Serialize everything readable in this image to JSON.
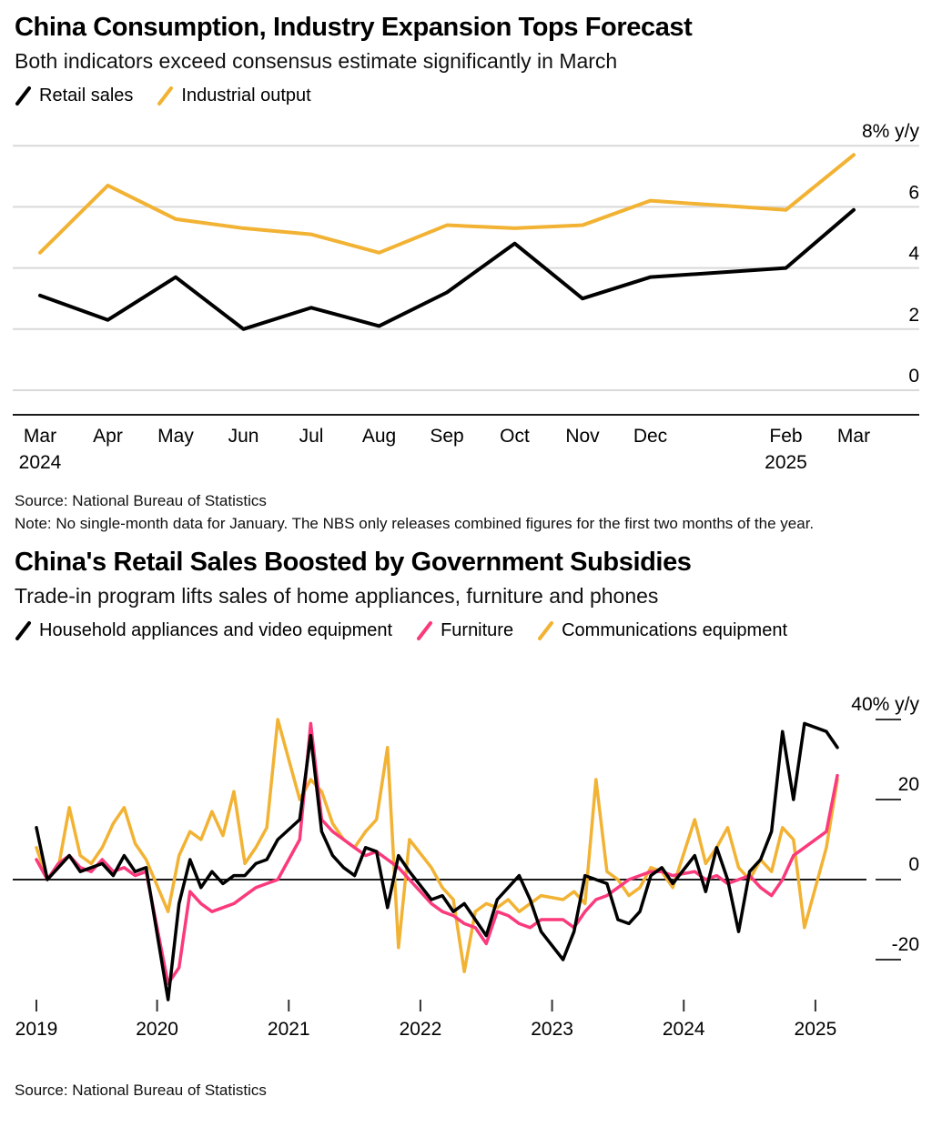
{
  "chart_data": [
    {
      "type": "line",
      "title": "China Consumption, Industry Expansion Tops Forecast",
      "subtitle": "Both indicators exceed consensus estimate significantly in March",
      "source": "Source: National Bureau of Statistics",
      "note": "Note: No single-month data for January. The NBS only releases combined figures for the first two months of the year.",
      "unit": "% y/y",
      "ylim": [
        0,
        8.6
      ],
      "yticks": [
        0,
        2,
        4,
        6,
        8
      ],
      "ytick_labels": [
        "0",
        "2",
        "4",
        "6",
        "8% y/y"
      ],
      "grid": "horizontal",
      "legend_position": "top",
      "categories": [
        "Mar 2024",
        "Apr 2024",
        "May 2024",
        "Jun 2024",
        "Jul 2024",
        "Aug 2024",
        "Sep 2024",
        "Oct 2024",
        "Nov 2024",
        "Dec 2024",
        "Feb 2025",
        "Mar 2025"
      ],
      "month_offsets": [
        0,
        1,
        2,
        3,
        4,
        5,
        6,
        7,
        8,
        9,
        11,
        12
      ],
      "xticks": [
        {
          "label": "Mar",
          "year": "2024",
          "offset": 0
        },
        {
          "label": "Apr",
          "offset": 1
        },
        {
          "label": "May",
          "offset": 2
        },
        {
          "label": "Jun",
          "offset": 3
        },
        {
          "label": "Jul",
          "offset": 4
        },
        {
          "label": "Aug",
          "offset": 5
        },
        {
          "label": "Sep",
          "offset": 6
        },
        {
          "label": "Oct",
          "offset": 7
        },
        {
          "label": "Nov",
          "offset": 8
        },
        {
          "label": "Dec",
          "offset": 9
        },
        {
          "label": "Feb",
          "year": "2025",
          "offset": 11
        },
        {
          "label": "Mar",
          "offset": 12
        }
      ],
      "series": [
        {
          "key": "retail-sales",
          "name": "Retail sales",
          "color": "#000000",
          "values": [
            3.1,
            2.3,
            3.7,
            2.0,
            2.7,
            2.1,
            3.2,
            4.8,
            3.0,
            3.7,
            4.0,
            5.9
          ]
        },
        {
          "key": "industrial-output",
          "name": "Industrial output",
          "color": "#f2b233",
          "values": [
            4.5,
            6.7,
            5.6,
            5.3,
            5.1,
            4.5,
            5.4,
            5.3,
            5.4,
            6.2,
            5.9,
            7.7
          ]
        }
      ]
    },
    {
      "type": "line",
      "title": "China's Retail Sales Boosted by Government Subsidies",
      "subtitle": "Trade-in program lifts sales of home appliances, furniture and phones",
      "source": "Source: National Bureau of Statistics",
      "unit": "% y/y",
      "ylim": [
        -32,
        42
      ],
      "yticks": [
        -20,
        0,
        20,
        40
      ],
      "ytick_labels": [
        "-20",
        "0",
        "20",
        "40% y/y"
      ],
      "grid": "none",
      "zero_line": true,
      "legend_position": "top",
      "x_year_labels": [
        "2019",
        "2020",
        "2021",
        "2022",
        "2023",
        "2024",
        "2025"
      ],
      "x_year_ticks": [
        1,
        12,
        24,
        36,
        48,
        60,
        72
      ],
      "x_months": [
        "2019-02",
        "2019-03",
        "2019-04",
        "2019-05",
        "2019-06",
        "2019-07",
        "2019-08",
        "2019-09",
        "2019-10",
        "2019-11",
        "2019-12",
        "2020-02",
        "2020-03",
        "2020-04",
        "2020-05",
        "2020-06",
        "2020-07",
        "2020-08",
        "2020-09",
        "2020-10",
        "2020-11",
        "2020-12",
        "2021-02",
        "2021-03",
        "2021-04",
        "2021-05",
        "2021-06",
        "2021-07",
        "2021-08",
        "2021-09",
        "2021-10",
        "2021-11",
        "2021-12",
        "2022-02",
        "2022-03",
        "2022-04",
        "2022-05",
        "2022-06",
        "2022-07",
        "2022-08",
        "2022-09",
        "2022-10",
        "2022-11",
        "2022-12",
        "2023-02",
        "2023-03",
        "2023-04",
        "2023-05",
        "2023-06",
        "2023-07",
        "2023-08",
        "2023-09",
        "2023-10",
        "2023-11",
        "2023-12",
        "2024-02",
        "2024-03",
        "2024-04",
        "2024-05",
        "2024-06",
        "2024-07",
        "2024-08",
        "2024-09",
        "2024-10",
        "2024-11",
        "2024-12",
        "2025-02",
        "2025-03"
      ],
      "series": [
        {
          "key": "household-appliances",
          "name": "Household appliances and video equipment",
          "color": "#000000",
          "values": [
            13,
            0,
            3,
            6,
            2,
            3,
            4,
            1,
            6,
            2,
            3,
            -30,
            -6,
            5,
            -2,
            2,
            -1,
            1,
            1,
            4,
            5,
            10,
            15,
            36,
            12,
            6,
            3,
            1,
            8,
            7,
            -7,
            6,
            2,
            -5,
            -4,
            -8,
            -6,
            -10,
            -14,
            -5,
            -2,
            1,
            -5,
            -13,
            -20,
            -13,
            1,
            0,
            -1,
            -10,
            -11,
            -8,
            1,
            3,
            -1,
            6,
            -3,
            8,
            0,
            -13,
            2,
            5,
            12,
            37,
            20,
            39,
            37,
            33
          ]
        },
        {
          "key": "furniture",
          "name": "Furniture",
          "color": "#fa3a7c",
          "values": [
            5,
            0,
            4,
            6,
            3,
            2,
            5,
            2,
            3,
            1,
            2,
            -26,
            -22,
            -3,
            -6,
            -8,
            -7,
            -6,
            -4,
            -2,
            -1,
            0,
            10,
            39,
            15,
            12,
            10,
            8,
            6,
            7,
            5,
            3,
            0,
            -6,
            -8,
            -9,
            -11,
            -12,
            -16,
            -8,
            -9,
            -11,
            -12,
            -10,
            -10,
            -12,
            -8,
            -5,
            -4,
            -2,
            0,
            1,
            2,
            2,
            1,
            2,
            0,
            1,
            -1,
            0,
            1,
            -2,
            -4,
            0,
            6,
            8,
            12,
            26
          ]
        },
        {
          "key": "communications-equipment",
          "name": "Communications equipment",
          "color": "#f2b233",
          "values": [
            8,
            0,
            3,
            18,
            6,
            4,
            8,
            14,
            18,
            9,
            5,
            -8,
            6,
            12,
            10,
            17,
            11,
            22,
            4,
            8,
            13,
            40,
            20,
            25,
            22,
            14,
            10,
            8,
            12,
            15,
            33,
            -17,
            10,
            3,
            -2,
            -5,
            -23,
            -8,
            -6,
            -7,
            -5,
            -8,
            -6,
            -4,
            -5,
            -3,
            -6,
            25,
            2,
            0,
            -4,
            -2,
            3,
            2,
            -2,
            15,
            4,
            8,
            13,
            3,
            0,
            5,
            2,
            13,
            10,
            -12,
            8,
            25
          ]
        }
      ]
    }
  ]
}
